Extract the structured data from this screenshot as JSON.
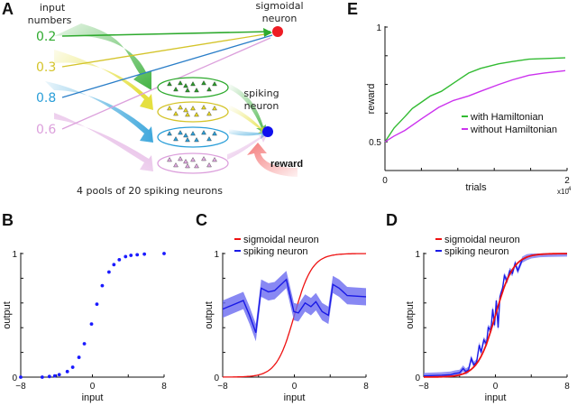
{
  "panel_a": {
    "letter": "A",
    "input_label_line1": "input",
    "input_label_line2": "numbers",
    "inputs": [
      {
        "value": "0.2",
        "color": "#2eaa2e"
      },
      {
        "value": "0.3",
        "color": "#d4c42a"
      },
      {
        "value": "0.8",
        "color": "#2a9ed8"
      },
      {
        "value": "0.6",
        "color": "#dca0dc"
      }
    ],
    "sigmoidal_label_line1": "sigmoidal",
    "sigmoidal_label_line2": "neuron",
    "sigmoidal_color": "#ee1c24",
    "spiking_label_line1": "spiking",
    "spiking_label_line2": "neuron",
    "spiking_color": "#1010ee",
    "reward_label": "reward",
    "reward_color": "#f47a7a",
    "pools_caption": "4 pools of 20 spiking neurons"
  },
  "chart_data": [
    {
      "id": "B",
      "letter": "B",
      "type": "scatter",
      "xlabel": "input",
      "ylabel": "output",
      "xlim": [
        -8,
        8
      ],
      "ylim": [
        0,
        1
      ],
      "xticks": [
        -8,
        0,
        8
      ],
      "xtick_labels": [
        "−8",
        "0",
        "8"
      ],
      "yticks": [
        0,
        1
      ],
      "ytick_labels": [
        "0",
        "1"
      ],
      "series": [
        {
          "name": "samples",
          "color": "#1a1aff",
          "x": [
            -8,
            -5.6,
            -4.8,
            -4.2,
            -3.7,
            -2.8,
            -2.2,
            -1.5,
            -0.9,
            -0.1,
            0.5,
            1.1,
            1.85,
            2.4,
            3.0,
            3.7,
            4.3,
            5.0,
            5.8,
            8.0
          ],
          "y": [
            0,
            0.0,
            0.005,
            0.01,
            0.02,
            0.045,
            0.08,
            0.16,
            0.27,
            0.43,
            0.59,
            0.74,
            0.85,
            0.91,
            0.95,
            0.975,
            0.985,
            0.99,
            0.995,
            1.0
          ]
        }
      ]
    },
    {
      "id": "C",
      "letter": "C",
      "type": "line",
      "xlabel": "input",
      "ylabel": "output",
      "xlim": [
        -8,
        8
      ],
      "ylim": [
        0,
        1
      ],
      "xtick_labels": [
        "−8",
        "0",
        "8"
      ],
      "ytick_labels": [
        "0",
        "1"
      ],
      "legend": [
        "sigmoidal neuron",
        "spiking neuron"
      ],
      "legend_position": "top-left",
      "series": [
        {
          "name": "sigmoidal neuron",
          "color": "#ee1111",
          "kind": "sigmoid",
          "gain": 1.0
        },
        {
          "name": "spiking neuron",
          "color": "#1a1ae6",
          "band_color": "#6a6af0",
          "band_halfwidth": 0.07,
          "x": [
            -8,
            -5.7,
            -5.0,
            -4.3,
            -3.7,
            -2.9,
            -2.2,
            -0.9,
            -0.05,
            0.45,
            1.2,
            1.85,
            2.4,
            3.1,
            3.8,
            4.3,
            5.0,
            5.9,
            8.0
          ],
          "y": [
            0.55,
            0.62,
            0.5,
            0.36,
            0.72,
            0.69,
            0.7,
            0.79,
            0.53,
            0.52,
            0.6,
            0.57,
            0.61,
            0.53,
            0.5,
            0.75,
            0.72,
            0.66,
            0.65
          ]
        }
      ]
    },
    {
      "id": "D",
      "letter": "D",
      "type": "line",
      "xlabel": "input",
      "ylabel": "output",
      "xlim": [
        -8,
        8
      ],
      "ylim": [
        0,
        1
      ],
      "xtick_labels": [
        "−8",
        "0",
        "8"
      ],
      "ytick_labels": [
        "0",
        "1"
      ],
      "legend": [
        "sigmoidal neuron",
        "spiking neuron"
      ],
      "legend_position": "top-left",
      "series": [
        {
          "name": "sigmoidal neuron",
          "color": "#ee1111",
          "kind": "sigmoid",
          "gain": 1.0
        },
        {
          "name": "spiking neuron",
          "color": "#1a1ae6",
          "band_color": "#7a7af2",
          "band_halfwidth": 0.025,
          "x": [
            -8,
            -6,
            -5,
            -4.5,
            -4,
            -3.6,
            -3.3,
            -3.0,
            -2.7,
            -2.4,
            -2.1,
            -1.8,
            -1.6,
            -1.3,
            -1.0,
            -0.8,
            -0.5,
            -0.3,
            -0.1,
            0.1,
            0.3,
            0.5,
            0.8,
            1.0,
            1.3,
            1.6,
            1.9,
            2.2,
            2.5,
            3,
            3.5,
            4,
            5,
            6,
            8
          ],
          "y": [
            0.01,
            0.015,
            0.02,
            0.03,
            0.035,
            0.07,
            0.045,
            0.06,
            0.15,
            0.1,
            0.12,
            0.26,
            0.2,
            0.3,
            0.27,
            0.4,
            0.38,
            0.55,
            0.42,
            0.62,
            0.4,
            0.65,
            0.72,
            0.82,
            0.78,
            0.86,
            0.84,
            0.92,
            0.86,
            0.95,
            0.97,
            0.985,
            0.995,
            0.998,
            1.0
          ]
        }
      ]
    },
    {
      "id": "E",
      "letter": "E",
      "type": "line",
      "xlabel": "trials",
      "ylabel": "reward",
      "xlim": [
        0,
        2
      ],
      "x_scale_label": "x10",
      "x_scale_exp": "4",
      "ylim": [
        0.375,
        1
      ],
      "xtick_labels": [
        "0",
        "2"
      ],
      "ytick_labels": [
        "0.5",
        "1"
      ],
      "legend": [
        "with Hamiltonian",
        "without Hamiltonian"
      ],
      "legend_position": "lower-right",
      "series": [
        {
          "name": "with Hamiltonian",
          "color": "#33bb33",
          "x": [
            0,
            0.1,
            0.22,
            0.3,
            0.39,
            0.5,
            0.62,
            0.75,
            0.92,
            1.05,
            1.25,
            1.4,
            1.58,
            1.75,
            1.98
          ],
          "y": [
            0.5,
            0.56,
            0.61,
            0.645,
            0.67,
            0.7,
            0.72,
            0.755,
            0.8,
            0.82,
            0.84,
            0.85,
            0.86,
            0.863,
            0.866
          ]
        },
        {
          "name": "without Hamiltonian",
          "color": "#cc33ee",
          "x": [
            0,
            0.1,
            0.22,
            0.4,
            0.59,
            0.75,
            0.92,
            1.05,
            1.25,
            1.4,
            1.58,
            1.75,
            1.98
          ],
          "y": [
            0.5,
            0.525,
            0.55,
            0.6,
            0.65,
            0.68,
            0.7,
            0.72,
            0.75,
            0.77,
            0.79,
            0.8,
            0.81
          ]
        }
      ]
    }
  ]
}
